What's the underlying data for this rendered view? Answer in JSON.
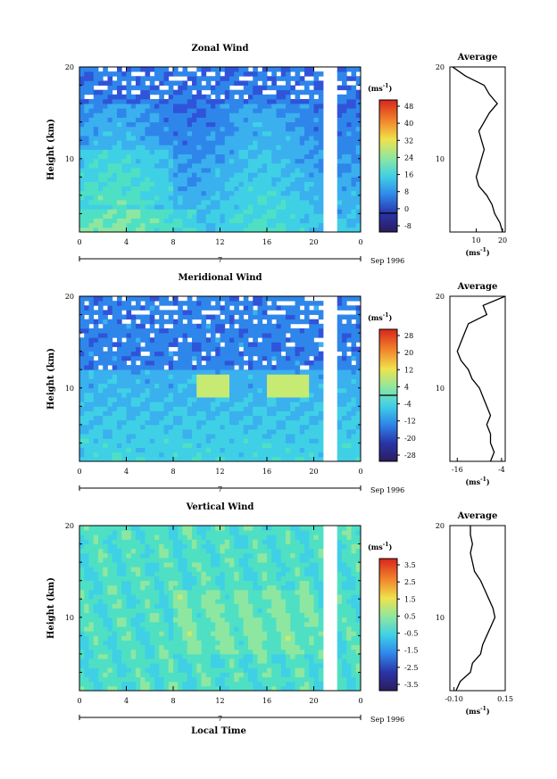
{
  "figure": {
    "xlabel": "Local Time",
    "date_label": "Sep 1996",
    "day_label": "7"
  },
  "colors": {
    "colormap": [
      "#2b1c5e",
      "#2a35a8",
      "#2f54d9",
      "#2f86ea",
      "#3ab0ee",
      "#3fd0e6",
      "#4fe0c4",
      "#8ee7a0",
      "#c7ea72",
      "#f0e24c",
      "#f5b63a",
      "#f2862c",
      "#ea4f22",
      "#d8261c"
    ]
  },
  "chart_data": [
    {
      "type": "heatmap",
      "title": "Zonal Wind",
      "ylabel": "Height (km)",
      "xticks": [
        "0",
        "4",
        "8",
        "12",
        "16",
        "20",
        "0"
      ],
      "yticks": [
        "20",
        "10"
      ],
      "xlim": [
        0,
        24
      ],
      "ylim": [
        2,
        20
      ],
      "colorbar": {
        "unit": "(ms-1)",
        "unit_base": "(ms",
        "unit_exp": "-1",
        "unit_close": ")",
        "ticks": [
          "48",
          "40",
          "32",
          "24",
          "16",
          "8",
          "0",
          "-8"
        ],
        "range": [
          -8,
          48
        ],
        "marked_level": 0
      },
      "average": {
        "title": "Average",
        "xticks": [
          "10",
          "20"
        ],
        "xunit": "(ms-1)",
        "unit_base": "(ms",
        "unit_exp": "-1",
        "unit_close": ")",
        "xlim": [
          0,
          21
        ],
        "profile": [
          [
            2,
            20
          ],
          [
            3,
            19
          ],
          [
            4,
            17
          ],
          [
            5,
            16
          ],
          [
            6,
            14
          ],
          [
            7,
            11
          ],
          [
            8,
            10
          ],
          [
            9,
            11
          ],
          [
            10,
            12
          ],
          [
            11,
            13
          ],
          [
            12,
            12
          ],
          [
            13,
            11
          ],
          [
            14,
            13
          ],
          [
            15,
            15
          ],
          [
            16,
            18
          ],
          [
            17,
            15
          ],
          [
            18,
            13
          ],
          [
            19,
            6
          ],
          [
            20,
            1
          ]
        ]
      }
    },
    {
      "type": "heatmap",
      "title": "Meridional Wind",
      "ylabel": "Height (km)",
      "xticks": [
        "0",
        "4",
        "8",
        "12",
        "16",
        "20",
        "0"
      ],
      "yticks": [
        "20",
        "10"
      ],
      "xlim": [
        0,
        24
      ],
      "ylim": [
        2,
        20
      ],
      "colorbar": {
        "unit": "(ms-1)",
        "unit_base": "(ms",
        "unit_exp": "-1",
        "unit_close": ")",
        "ticks": [
          "28",
          "20",
          "12",
          "4",
          "-4",
          "-12",
          "-20",
          "-28"
        ],
        "range": [
          -28,
          28
        ],
        "marked_level": 0
      },
      "average": {
        "title": "Average",
        "xticks": [
          "-16",
          "-4"
        ],
        "xunit": "(ms-1)",
        "unit_base": "(ms",
        "unit_exp": "-1",
        "unit_close": ")",
        "xlim": [
          -18,
          -3
        ],
        "profile": [
          [
            2,
            -7
          ],
          [
            3,
            -6
          ],
          [
            4,
            -7
          ],
          [
            5,
            -7
          ],
          [
            6,
            -8
          ],
          [
            7,
            -7
          ],
          [
            8,
            -8
          ],
          [
            9,
            -9
          ],
          [
            10,
            -10
          ],
          [
            11,
            -12
          ],
          [
            12,
            -13
          ],
          [
            13,
            -15
          ],
          [
            14,
            -16
          ],
          [
            15,
            -15
          ],
          [
            16,
            -14
          ],
          [
            17,
            -13
          ],
          [
            18,
            -8
          ],
          [
            19,
            -9
          ],
          [
            20,
            -3
          ]
        ]
      }
    },
    {
      "type": "heatmap",
      "title": "Vertical Wind",
      "ylabel": "Height (km)",
      "xticks": [
        "0",
        "4",
        "8",
        "12",
        "16",
        "20",
        "0"
      ],
      "yticks": [
        "20",
        "10"
      ],
      "xlim": [
        0,
        24
      ],
      "ylim": [
        2,
        20
      ],
      "colorbar": {
        "unit": "(ms-1)",
        "unit_base": "(ms",
        "unit_exp": "-1",
        "unit_close": ")",
        "ticks": [
          "3.5",
          "2.5",
          "1.5",
          "0.5",
          "-0.5",
          "-1.5",
          "-2.5",
          "-3.5"
        ],
        "range": [
          -3.5,
          3.5
        ],
        "marked_level": null
      },
      "average": {
        "title": "Average",
        "xticks": [
          "-0.10",
          "0.15"
        ],
        "xunit": "(ms-1)",
        "unit_base": "(ms",
        "unit_exp": "-1",
        "unit_close": ")",
        "xlim": [
          -0.12,
          0.15
        ],
        "profile": [
          [
            2,
            -0.09
          ],
          [
            3,
            -0.07
          ],
          [
            4,
            -0.02
          ],
          [
            5,
            -0.01
          ],
          [
            6,
            0.03
          ],
          [
            7,
            0.04
          ],
          [
            8,
            0.06
          ],
          [
            9,
            0.08
          ],
          [
            10,
            0.1
          ],
          [
            11,
            0.09
          ],
          [
            12,
            0.07
          ],
          [
            13,
            0.05
          ],
          [
            14,
            0.03
          ],
          [
            15,
            0.0
          ],
          [
            16,
            -0.01
          ],
          [
            17,
            -0.02
          ],
          [
            18,
            -0.01
          ],
          [
            19,
            -0.02
          ],
          [
            20,
            -0.02
          ]
        ]
      }
    }
  ]
}
